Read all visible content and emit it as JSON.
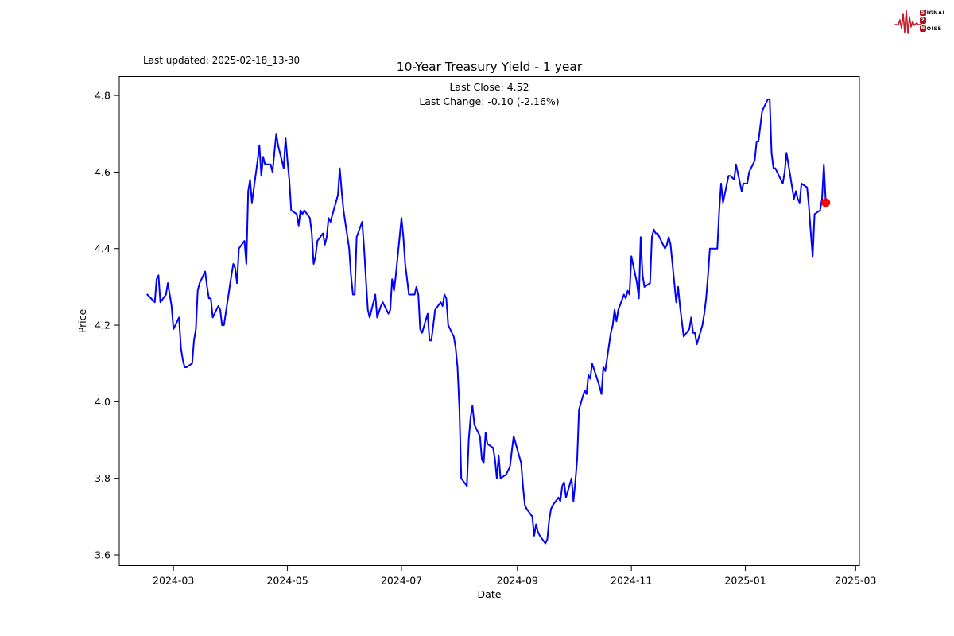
{
  "header": {
    "last_updated": "Last updated: 2025-02-18_13-30",
    "logo": {
      "rows": [
        {
          "badge": "S",
          "rest": "IGNAL"
        },
        {
          "badge": "2",
          "rest": ""
        },
        {
          "badge": "N",
          "rest": "OISE"
        }
      ],
      "badge_color": "#a51220",
      "wave_color": "#c41a2b"
    }
  },
  "chart_data": {
    "type": "line",
    "title": "10-Year Treasury Yield - 1 year",
    "subtitle_lines": [
      "Last Close: 4.52",
      "Last Change: -0.10 (-2.16%)"
    ],
    "xlabel": "Date",
    "ylabel": "Price",
    "x_ticks": [
      {
        "label": "2024-03",
        "date": "2024-03-01"
      },
      {
        "label": "2024-05",
        "date": "2024-05-01"
      },
      {
        "label": "2024-07",
        "date": "2024-07-01"
      },
      {
        "label": "2024-09",
        "date": "2024-09-01"
      },
      {
        "label": "2024-11",
        "date": "2024-11-01"
      },
      {
        "label": "2025-01",
        "date": "2025-01-01"
      },
      {
        "label": "2025-03",
        "date": "2025-03-01"
      }
    ],
    "y_ticks": [
      3.6,
      3.8,
      4.0,
      4.2,
      4.4,
      4.6,
      4.8
    ],
    "xlim": [
      "2024-02-01",
      "2025-03-03"
    ],
    "ylim": [
      3.572,
      4.849
    ],
    "grid": false,
    "legend": "none",
    "line_color": "#0000ff",
    "marker": {
      "shape": "circle",
      "color": "#ff0000",
      "meaning": "last close"
    },
    "last_close": 4.52,
    "last_change": "-0.10 (-2.16%)",
    "series": [
      {
        "name": "10-Year Treasury Yield",
        "points": [
          [
            "2024-02-16",
            4.28
          ],
          [
            "2024-02-20",
            4.26
          ],
          [
            "2024-02-21",
            4.32
          ],
          [
            "2024-02-22",
            4.33
          ],
          [
            "2024-02-23",
            4.26
          ],
          [
            "2024-02-26",
            4.28
          ],
          [
            "2024-02-27",
            4.31
          ],
          [
            "2024-02-28",
            4.28
          ],
          [
            "2024-02-29",
            4.25
          ],
          [
            "2024-03-01",
            4.19
          ],
          [
            "2024-03-04",
            4.22
          ],
          [
            "2024-03-05",
            4.14
          ],
          [
            "2024-03-06",
            4.11
          ],
          [
            "2024-03-07",
            4.09
          ],
          [
            "2024-03-08",
            4.09
          ],
          [
            "2024-03-11",
            4.1
          ],
          [
            "2024-03-12",
            4.16
          ],
          [
            "2024-03-13",
            4.19
          ],
          [
            "2024-03-14",
            4.29
          ],
          [
            "2024-03-15",
            4.31
          ],
          [
            "2024-03-18",
            4.34
          ],
          [
            "2024-03-19",
            4.3
          ],
          [
            "2024-03-20",
            4.27
          ],
          [
            "2024-03-21",
            4.27
          ],
          [
            "2024-03-22",
            4.22
          ],
          [
            "2024-03-25",
            4.25
          ],
          [
            "2024-03-26",
            4.24
          ],
          [
            "2024-03-27",
            4.2
          ],
          [
            "2024-03-28",
            4.2
          ],
          [
            "2024-04-01",
            4.33
          ],
          [
            "2024-04-02",
            4.36
          ],
          [
            "2024-04-03",
            4.35
          ],
          [
            "2024-04-04",
            4.31
          ],
          [
            "2024-04-05",
            4.4
          ],
          [
            "2024-04-08",
            4.42
          ],
          [
            "2024-04-09",
            4.36
          ],
          [
            "2024-04-10",
            4.55
          ],
          [
            "2024-04-11",
            4.58
          ],
          [
            "2024-04-12",
            4.52
          ],
          [
            "2024-04-15",
            4.63
          ],
          [
            "2024-04-16",
            4.67
          ],
          [
            "2024-04-17",
            4.59
          ],
          [
            "2024-04-18",
            4.64
          ],
          [
            "2024-04-19",
            4.62
          ],
          [
            "2024-04-22",
            4.62
          ],
          [
            "2024-04-23",
            4.6
          ],
          [
            "2024-04-24",
            4.65
          ],
          [
            "2024-04-25",
            4.7
          ],
          [
            "2024-04-26",
            4.67
          ],
          [
            "2024-04-29",
            4.61
          ],
          [
            "2024-04-30",
            4.69
          ],
          [
            "2024-05-01",
            4.63
          ],
          [
            "2024-05-02",
            4.58
          ],
          [
            "2024-05-03",
            4.5
          ],
          [
            "2024-05-06",
            4.49
          ],
          [
            "2024-05-07",
            4.46
          ],
          [
            "2024-05-08",
            4.5
          ],
          [
            "2024-05-09",
            4.49
          ],
          [
            "2024-05-10",
            4.5
          ],
          [
            "2024-05-13",
            4.48
          ],
          [
            "2024-05-14",
            4.44
          ],
          [
            "2024-05-15",
            4.36
          ],
          [
            "2024-05-16",
            4.38
          ],
          [
            "2024-05-17",
            4.42
          ],
          [
            "2024-05-20",
            4.44
          ],
          [
            "2024-05-21",
            4.41
          ],
          [
            "2024-05-22",
            4.43
          ],
          [
            "2024-05-23",
            4.48
          ],
          [
            "2024-05-24",
            4.47
          ],
          [
            "2024-05-28",
            4.54
          ],
          [
            "2024-05-29",
            4.61
          ],
          [
            "2024-05-30",
            4.55
          ],
          [
            "2024-05-31",
            4.5
          ],
          [
            "2024-06-03",
            4.4
          ],
          [
            "2024-06-04",
            4.33
          ],
          [
            "2024-06-05",
            4.28
          ],
          [
            "2024-06-06",
            4.28
          ],
          [
            "2024-06-07",
            4.43
          ],
          [
            "2024-06-10",
            4.47
          ],
          [
            "2024-06-11",
            4.4
          ],
          [
            "2024-06-12",
            4.32
          ],
          [
            "2024-06-13",
            4.24
          ],
          [
            "2024-06-14",
            4.22
          ],
          [
            "2024-06-17",
            4.28
          ],
          [
            "2024-06-18",
            4.22
          ],
          [
            "2024-06-20",
            4.25
          ],
          [
            "2024-06-21",
            4.26
          ],
          [
            "2024-06-24",
            4.23
          ],
          [
            "2024-06-25",
            4.24
          ],
          [
            "2024-06-26",
            4.32
          ],
          [
            "2024-06-27",
            4.29
          ],
          [
            "2024-06-28",
            4.33
          ],
          [
            "2024-07-01",
            4.48
          ],
          [
            "2024-07-02",
            4.43
          ],
          [
            "2024-07-03",
            4.36
          ],
          [
            "2024-07-05",
            4.28
          ],
          [
            "2024-07-08",
            4.28
          ],
          [
            "2024-07-09",
            4.3
          ],
          [
            "2024-07-10",
            4.28
          ],
          [
            "2024-07-11",
            4.19
          ],
          [
            "2024-07-12",
            4.18
          ],
          [
            "2024-07-15",
            4.23
          ],
          [
            "2024-07-16",
            4.16
          ],
          [
            "2024-07-17",
            4.16
          ],
          [
            "2024-07-18",
            4.2
          ],
          [
            "2024-07-19",
            4.24
          ],
          [
            "2024-07-22",
            4.26
          ],
          [
            "2024-07-23",
            4.25
          ],
          [
            "2024-07-24",
            4.28
          ],
          [
            "2024-07-25",
            4.27
          ],
          [
            "2024-07-26",
            4.2
          ],
          [
            "2024-07-29",
            4.17
          ],
          [
            "2024-07-30",
            4.14
          ],
          [
            "2024-07-31",
            4.09
          ],
          [
            "2024-08-01",
            3.98
          ],
          [
            "2024-08-02",
            3.8
          ],
          [
            "2024-08-05",
            3.78
          ],
          [
            "2024-08-06",
            3.9
          ],
          [
            "2024-08-07",
            3.96
          ],
          [
            "2024-08-08",
            3.99
          ],
          [
            "2024-08-09",
            3.94
          ],
          [
            "2024-08-12",
            3.91
          ],
          [
            "2024-08-13",
            3.85
          ],
          [
            "2024-08-14",
            3.84
          ],
          [
            "2024-08-15",
            3.92
          ],
          [
            "2024-08-16",
            3.89
          ],
          [
            "2024-08-19",
            3.88
          ],
          [
            "2024-08-20",
            3.85
          ],
          [
            "2024-08-21",
            3.8
          ],
          [
            "2024-08-22",
            3.86
          ],
          [
            "2024-08-23",
            3.8
          ],
          [
            "2024-08-26",
            3.81
          ],
          [
            "2024-08-27",
            3.82
          ],
          [
            "2024-08-28",
            3.83
          ],
          [
            "2024-08-29",
            3.87
          ],
          [
            "2024-08-30",
            3.91
          ],
          [
            "2024-09-03",
            3.84
          ],
          [
            "2024-09-04",
            3.78
          ],
          [
            "2024-09-05",
            3.73
          ],
          [
            "2024-09-06",
            3.72
          ],
          [
            "2024-09-09",
            3.7
          ],
          [
            "2024-09-10",
            3.65
          ],
          [
            "2024-09-11",
            3.68
          ],
          [
            "2024-09-12",
            3.66
          ],
          [
            "2024-09-13",
            3.65
          ],
          [
            "2024-09-16",
            3.63
          ],
          [
            "2024-09-17",
            3.64
          ],
          [
            "2024-09-18",
            3.69
          ],
          [
            "2024-09-19",
            3.72
          ],
          [
            "2024-09-20",
            3.73
          ],
          [
            "2024-09-23",
            3.75
          ],
          [
            "2024-09-24",
            3.74
          ],
          [
            "2024-09-25",
            3.78
          ],
          [
            "2024-09-26",
            3.79
          ],
          [
            "2024-09-27",
            3.75
          ],
          [
            "2024-09-30",
            3.8
          ],
          [
            "2024-10-01",
            3.74
          ],
          [
            "2024-10-02",
            3.79
          ],
          [
            "2024-10-03",
            3.85
          ],
          [
            "2024-10-04",
            3.98
          ],
          [
            "2024-10-07",
            4.03
          ],
          [
            "2024-10-08",
            4.02
          ],
          [
            "2024-10-09",
            4.07
          ],
          [
            "2024-10-10",
            4.06
          ],
          [
            "2024-10-11",
            4.1
          ],
          [
            "2024-10-15",
            4.04
          ],
          [
            "2024-10-16",
            4.02
          ],
          [
            "2024-10-17",
            4.09
          ],
          [
            "2024-10-18",
            4.08
          ],
          [
            "2024-10-21",
            4.18
          ],
          [
            "2024-10-22",
            4.2
          ],
          [
            "2024-10-23",
            4.24
          ],
          [
            "2024-10-24",
            4.21
          ],
          [
            "2024-10-25",
            4.24
          ],
          [
            "2024-10-28",
            4.28
          ],
          [
            "2024-10-29",
            4.27
          ],
          [
            "2024-10-30",
            4.29
          ],
          [
            "2024-10-31",
            4.28
          ],
          [
            "2024-11-01",
            4.38
          ],
          [
            "2024-11-04",
            4.31
          ],
          [
            "2024-11-05",
            4.27
          ],
          [
            "2024-11-06",
            4.43
          ],
          [
            "2024-11-07",
            4.33
          ],
          [
            "2024-11-08",
            4.3
          ],
          [
            "2024-11-11",
            4.31
          ],
          [
            "2024-11-12",
            4.43
          ],
          [
            "2024-11-13",
            4.45
          ],
          [
            "2024-11-14",
            4.44
          ],
          [
            "2024-11-15",
            4.44
          ],
          [
            "2024-11-18",
            4.41
          ],
          [
            "2024-11-19",
            4.4
          ],
          [
            "2024-11-20",
            4.41
          ],
          [
            "2024-11-21",
            4.43
          ],
          [
            "2024-11-22",
            4.41
          ],
          [
            "2024-11-25",
            4.26
          ],
          [
            "2024-11-26",
            4.3
          ],
          [
            "2024-11-27",
            4.25
          ],
          [
            "2024-11-29",
            4.17
          ],
          [
            "2024-12-02",
            4.19
          ],
          [
            "2024-12-03",
            4.22
          ],
          [
            "2024-12-04",
            4.18
          ],
          [
            "2024-12-05",
            4.18
          ],
          [
            "2024-12-06",
            4.15
          ],
          [
            "2024-12-09",
            4.2
          ],
          [
            "2024-12-10",
            4.23
          ],
          [
            "2024-12-11",
            4.27
          ],
          [
            "2024-12-12",
            4.33
          ],
          [
            "2024-12-13",
            4.4
          ],
          [
            "2024-12-16",
            4.4
          ],
          [
            "2024-12-17",
            4.4
          ],
          [
            "2024-12-18",
            4.5
          ],
          [
            "2024-12-19",
            4.57
          ],
          [
            "2024-12-20",
            4.52
          ],
          [
            "2024-12-23",
            4.59
          ],
          [
            "2024-12-24",
            4.59
          ],
          [
            "2024-12-26",
            4.58
          ],
          [
            "2024-12-27",
            4.62
          ],
          [
            "2024-12-30",
            4.55
          ],
          [
            "2024-12-31",
            4.57
          ],
          [
            "2025-01-02",
            4.57
          ],
          [
            "2025-01-03",
            4.6
          ],
          [
            "2025-01-06",
            4.63
          ],
          [
            "2025-01-07",
            4.68
          ],
          [
            "2025-01-08",
            4.68
          ],
          [
            "2025-01-10",
            4.76
          ],
          [
            "2025-01-13",
            4.79
          ],
          [
            "2025-01-14",
            4.79
          ],
          [
            "2025-01-15",
            4.65
          ],
          [
            "2025-01-16",
            4.61
          ],
          [
            "2025-01-17",
            4.61
          ],
          [
            "2025-01-21",
            4.57
          ],
          [
            "2025-01-22",
            4.6
          ],
          [
            "2025-01-23",
            4.65
          ],
          [
            "2025-01-24",
            4.62
          ],
          [
            "2025-01-27",
            4.53
          ],
          [
            "2025-01-28",
            4.55
          ],
          [
            "2025-01-29",
            4.53
          ],
          [
            "2025-01-30",
            4.52
          ],
          [
            "2025-01-31",
            4.57
          ],
          [
            "2025-02-03",
            4.56
          ],
          [
            "2025-02-04",
            4.51
          ],
          [
            "2025-02-05",
            4.44
          ],
          [
            "2025-02-06",
            4.38
          ],
          [
            "2025-02-07",
            4.49
          ],
          [
            "2025-02-10",
            4.5
          ],
          [
            "2025-02-11",
            4.53
          ],
          [
            "2025-02-12",
            4.62
          ],
          [
            "2025-02-13",
            4.52
          ]
        ]
      }
    ]
  }
}
